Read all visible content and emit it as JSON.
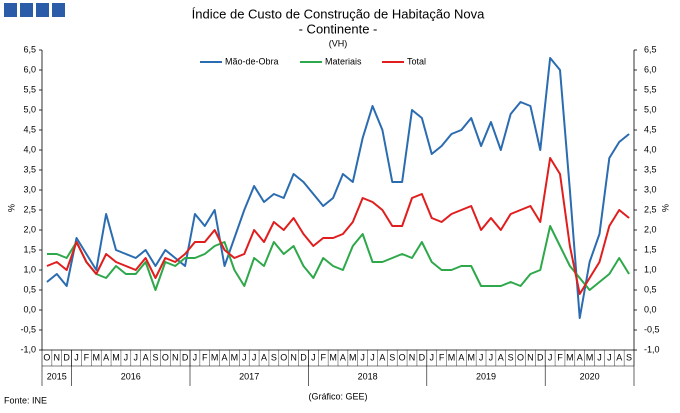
{
  "chart_data": {
    "type": "line",
    "title": "Índice de Custo de Construção de Habitação Nova",
    "subtitle": "- Continente -",
    "note": "(VH)",
    "ylabel": "%",
    "y2label": "%",
    "legend": "top",
    "source": "Fonte: INE",
    "credit": "(Gráfico: GEE)",
    "categories": [
      "O",
      "N",
      "D",
      "J",
      "F",
      "M",
      "A",
      "M",
      "J",
      "J",
      "A",
      "S",
      "O",
      "N",
      "D",
      "J",
      "F",
      "M",
      "A",
      "M",
      "J",
      "J",
      "A",
      "S",
      "O",
      "N",
      "D",
      "J",
      "F",
      "M",
      "A",
      "M",
      "J",
      "J",
      "A",
      "S",
      "O",
      "N",
      "D",
      "J",
      "F",
      "M",
      "A",
      "M",
      "J",
      "J",
      "A",
      "S",
      "O",
      "N",
      "D",
      "J",
      "F",
      "M",
      "A",
      "M",
      "J",
      "J",
      "A",
      "S"
    ],
    "year_groups": [
      {
        "label": "2015",
        "count": 3
      },
      {
        "label": "2016",
        "count": 12
      },
      {
        "label": "2017",
        "count": 12
      },
      {
        "label": "2018",
        "count": 12
      },
      {
        "label": "2019",
        "count": 12
      },
      {
        "label": "2020",
        "count": 9
      }
    ],
    "series": [
      {
        "name": "Mão-de-Obra",
        "color": "#2b6cb0",
        "values": [
          0.7,
          0.9,
          0.6,
          1.8,
          1.4,
          1.0,
          2.4,
          1.5,
          1.4,
          1.3,
          1.5,
          1.1,
          1.5,
          1.3,
          1.1,
          2.4,
          2.1,
          2.5,
          1.1,
          1.8,
          2.5,
          3.1,
          2.7,
          2.9,
          2.8,
          3.4,
          3.2,
          2.9,
          2.6,
          2.8,
          3.4,
          3.2,
          4.3,
          5.1,
          4.5,
          3.2,
          3.2,
          5.0,
          4.8,
          3.9,
          4.1,
          4.4,
          4.5,
          4.8,
          4.1,
          4.7,
          4.0,
          4.9,
          5.2,
          5.1,
          4.0,
          6.3,
          6.0,
          3.0,
          -0.2,
          1.2,
          1.9,
          3.8,
          4.2,
          4.4
        ]
      },
      {
        "name": "Materiais",
        "color": "#2ea84a",
        "values": [
          1.4,
          1.4,
          1.3,
          1.7,
          1.2,
          0.9,
          0.8,
          1.1,
          0.9,
          0.9,
          1.2,
          0.5,
          1.2,
          1.1,
          1.3,
          1.3,
          1.4,
          1.6,
          1.7,
          1.0,
          0.6,
          1.3,
          1.1,
          1.7,
          1.4,
          1.6,
          1.1,
          0.8,
          1.3,
          1.1,
          1.0,
          1.6,
          1.9,
          1.2,
          1.2,
          1.3,
          1.4,
          1.3,
          1.7,
          1.2,
          1.0,
          1.0,
          1.1,
          1.1,
          0.6,
          0.6,
          0.6,
          0.7,
          0.6,
          0.9,
          1.0,
          2.1,
          1.6,
          1.1,
          0.8,
          0.5,
          0.7,
          0.9,
          1.3,
          0.9
        ]
      },
      {
        "name": "Total",
        "color": "#e01e1e",
        "values": [
          1.1,
          1.2,
          1.0,
          1.7,
          1.2,
          0.9,
          1.4,
          1.2,
          1.1,
          1.0,
          1.3,
          0.8,
          1.3,
          1.2,
          1.4,
          1.7,
          1.7,
          2.0,
          1.5,
          1.3,
          1.4,
          2.0,
          1.7,
          2.2,
          2.0,
          2.3,
          1.9,
          1.6,
          1.8,
          1.8,
          1.9,
          2.2,
          2.8,
          2.7,
          2.5,
          2.1,
          2.1,
          2.8,
          2.9,
          2.3,
          2.2,
          2.4,
          2.5,
          2.6,
          2.0,
          2.3,
          2.0,
          2.4,
          2.5,
          2.6,
          2.2,
          3.8,
          3.4,
          1.6,
          0.4,
          0.8,
          1.2,
          2.1,
          2.5,
          2.3
        ]
      }
    ],
    "ylim": [
      -1.0,
      6.5
    ],
    "yticks": [
      {
        "value": 6.5,
        "label": "6,5"
      },
      {
        "value": 6.0,
        "label": "6,0"
      },
      {
        "value": 5.5,
        "label": "5,5"
      },
      {
        "value": 5.0,
        "label": "5,0"
      },
      {
        "value": 4.5,
        "label": "4,5"
      },
      {
        "value": 4.0,
        "label": "4,0"
      },
      {
        "value": 3.5,
        "label": "3,5"
      },
      {
        "value": 3.0,
        "label": "3,0"
      },
      {
        "value": 2.5,
        "label": "2,5"
      },
      {
        "value": 2.0,
        "label": "2,0"
      },
      {
        "value": 1.5,
        "label": "1,5"
      },
      {
        "value": 1.0,
        "label": "1,0"
      },
      {
        "value": 0.5,
        "label": "0,5"
      },
      {
        "value": 0.0,
        "label": "0,0"
      },
      {
        "value": -0.5,
        "label": "-0,5"
      },
      {
        "value": -1.0,
        "label": "-1,0"
      }
    ],
    "y2lim": [
      -1.0,
      6.5
    ],
    "y2ticks": [
      {
        "value": 6.5,
        "label": "6,5"
      },
      {
        "value": 6.0,
        "label": "6,0"
      },
      {
        "value": 5.5,
        "label": "5,5"
      },
      {
        "value": 5.0,
        "label": "5,0"
      },
      {
        "value": 4.5,
        "label": "4,5"
      },
      {
        "value": 4.0,
        "label": "4,0"
      },
      {
        "value": 3.5,
        "label": "3,5"
      },
      {
        "value": 3.0,
        "label": "3,0"
      },
      {
        "value": 2.5,
        "label": "2,5"
      },
      {
        "value": 2.0,
        "label": "2,0"
      },
      {
        "value": 1.5,
        "label": "1,5"
      },
      {
        "value": 1.0,
        "label": "1,0"
      },
      {
        "value": 0.5,
        "label": "0,5"
      },
      {
        "value": 0.0,
        "label": "0,0"
      },
      {
        "value": -0.5,
        "label": "-0,5"
      },
      {
        "value": -1.0,
        "label": "-1,0"
      }
    ]
  }
}
